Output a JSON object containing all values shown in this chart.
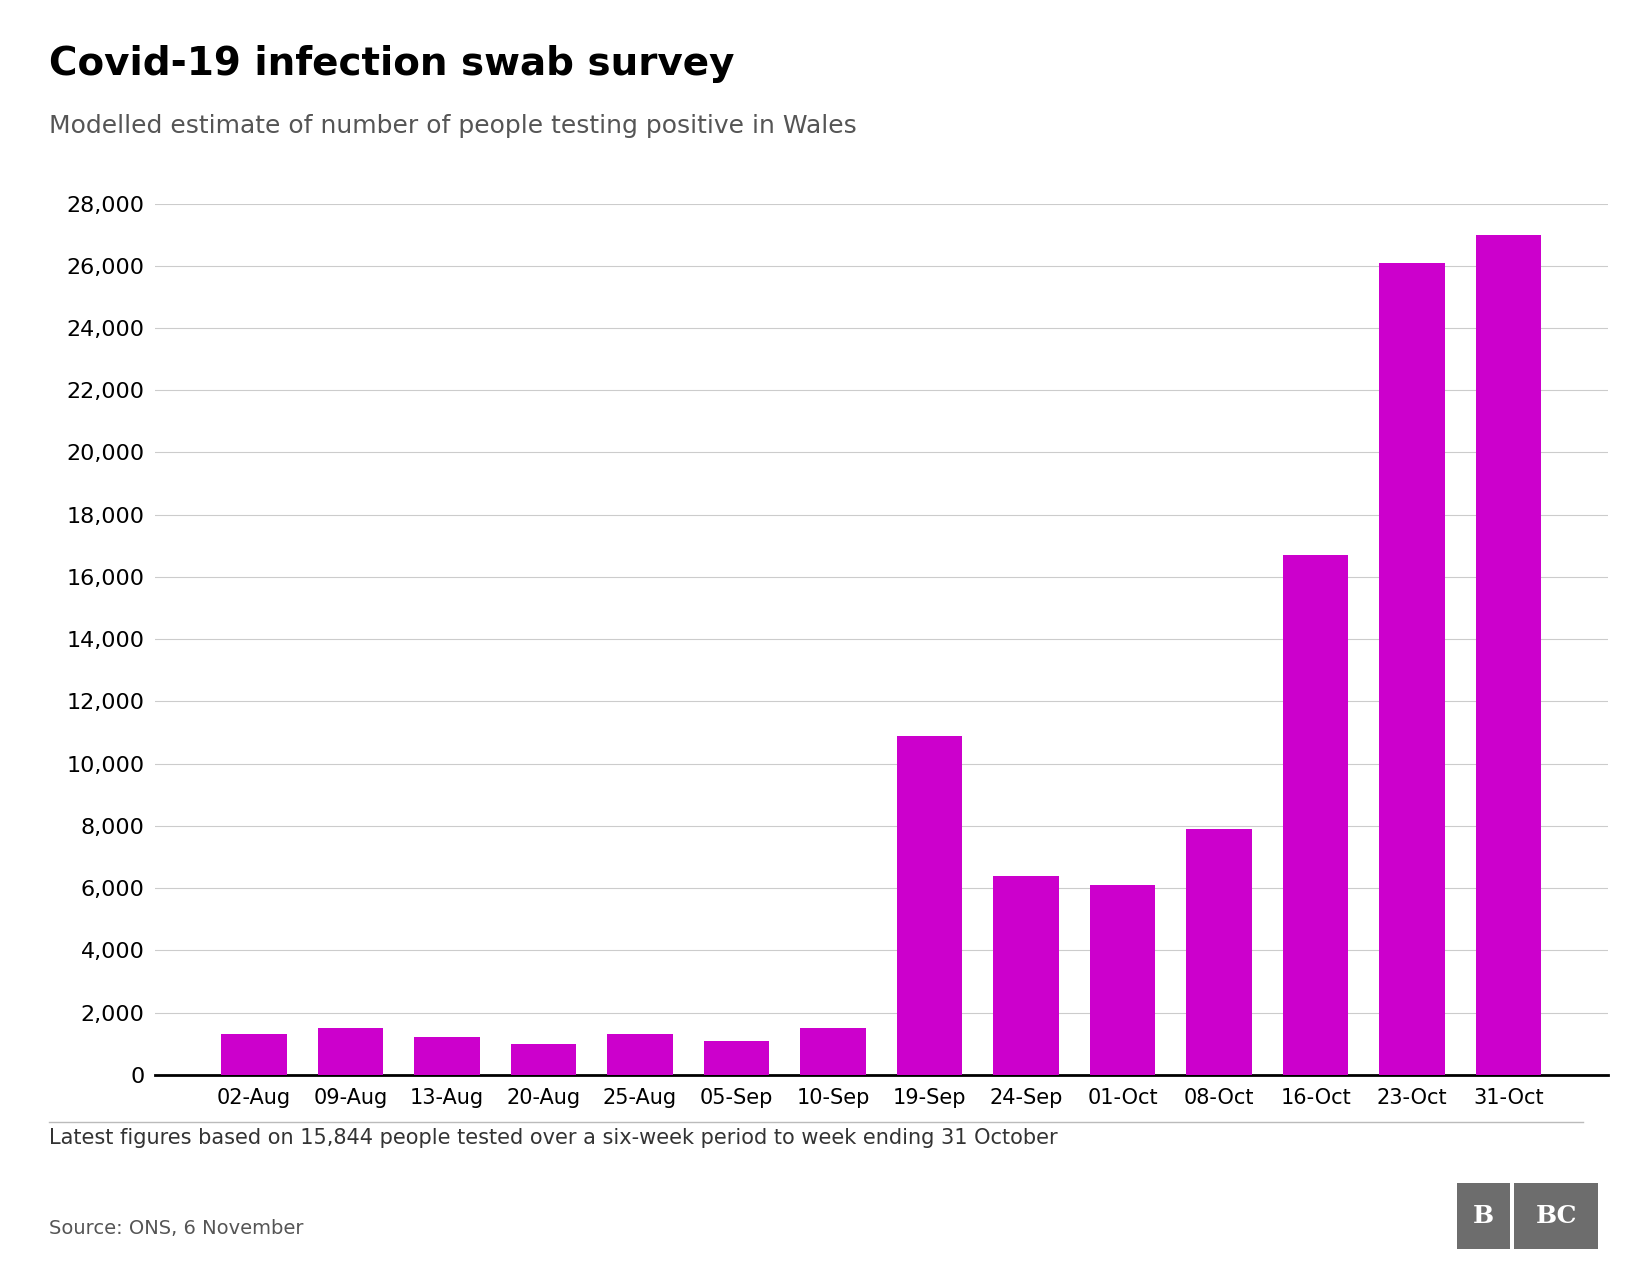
{
  "title": "Covid-19 infection swab survey",
  "subtitle": "Modelled estimate of number of people testing positive in Wales",
  "footnote": "Latest figures based on 15,844 people tested over a six-week period to week ending 31 October",
  "source": "Source: ONS, 6 November",
  "categories": [
    "02-Aug",
    "09-Aug",
    "13-Aug",
    "20-Aug",
    "25-Aug",
    "05-Sep",
    "10-Sep",
    "19-Sep",
    "24-Sep",
    "01-Oct",
    "08-Oct",
    "16-Oct",
    "23-Oct",
    "31-Oct"
  ],
  "values": [
    1300,
    1500,
    1200,
    1000,
    1300,
    1100,
    1500,
    10900,
    6400,
    6100,
    7900,
    16700,
    26100,
    27000
  ],
  "bar_color": "#cc00cc",
  "ylim": [
    0,
    28000
  ],
  "ytick_step": 2000,
  "background_color": "#ffffff",
  "title_fontsize": 28,
  "subtitle_fontsize": 18,
  "tick_fontsize": 16,
  "footnote_fontsize": 15,
  "source_fontsize": 14
}
